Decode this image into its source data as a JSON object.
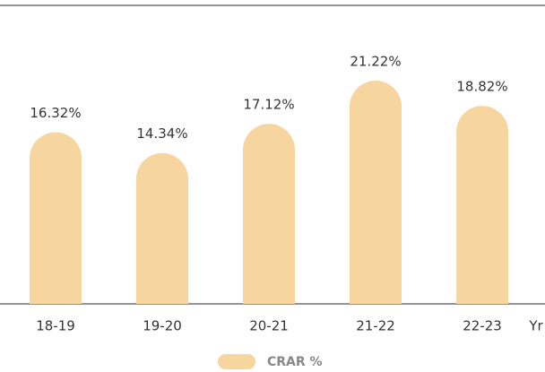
{
  "chart_data": {
    "type": "bar",
    "categories": [
      "18-19",
      "19-20",
      "20-21",
      "21-22",
      "22-23"
    ],
    "x_label": "Yr",
    "series": [
      {
        "name": "CRAR %",
        "color": "#f6d59f",
        "values": [
          16.32,
          14.34,
          17.12,
          21.22,
          18.82
        ],
        "value_labels": [
          "16.32%",
          "14.34%",
          "17.12%",
          "21.22%",
          "18.82%"
        ]
      }
    ]
  }
}
